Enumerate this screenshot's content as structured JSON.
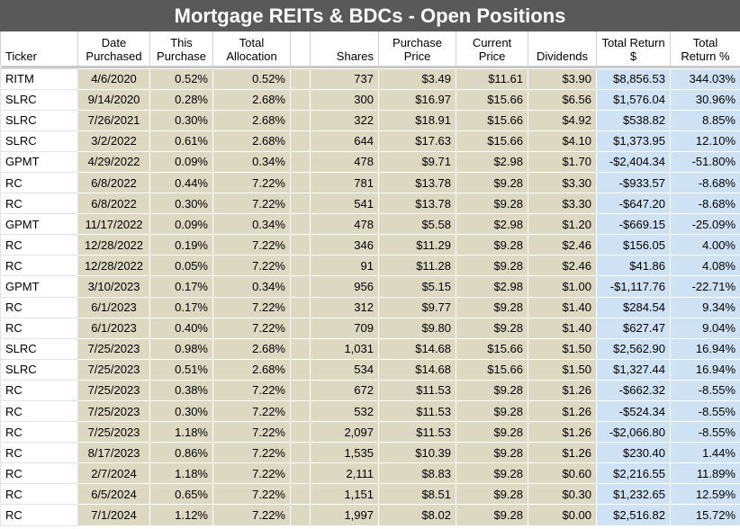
{
  "title": "Mortgage REITs & BDCs - Open Positions",
  "headers": {
    "ticker": "Ticker",
    "date_purchased": "Date Purchased",
    "this_purchase": "This Purchase",
    "total_allocation": "Total Allocation",
    "blank": "",
    "shares": "Shares",
    "purchase_price": "Purchase Price",
    "current_price": "Current Price",
    "dividends": "Dividends",
    "total_return_usd": "Total Return $",
    "total_return_pct": "Total Return %"
  },
  "colors": {
    "title_bg": "#595959",
    "tan": "#dcd8c2",
    "blue": "#cfe2f3",
    "negative": "#cc3333"
  },
  "rows": [
    [
      "RITM",
      "4/6/2020",
      "0.52%",
      "0.52%",
      "737",
      "$3.49",
      "$11.61",
      "$3.90",
      "$8,856.53",
      "344.03%"
    ],
    [
      "SLRC",
      "9/14/2020",
      "0.28%",
      "2.68%",
      "300",
      "$16.97",
      "$15.66",
      "$6.56",
      "$1,576.04",
      "30.96%"
    ],
    [
      "SLRC",
      "7/26/2021",
      "0.30%",
      "2.68%",
      "322",
      "$18.91",
      "$15.66",
      "$4.92",
      "$538.82",
      "8.85%"
    ],
    [
      "SLRC",
      "3/2/2022",
      "0.61%",
      "2.68%",
      "644",
      "$17.63",
      "$15.66",
      "$4.10",
      "$1,373.95",
      "12.10%"
    ],
    [
      "GPMT",
      "4/29/2022",
      "0.09%",
      "0.34%",
      "478",
      "$9.71",
      "$2.98",
      "$1.70",
      "-$2,404.34",
      "-51.80%"
    ],
    [
      "RC",
      "6/8/2022",
      "0.44%",
      "7.22%",
      "781",
      "$13.78",
      "$9.28",
      "$3.30",
      "-$933.57",
      "-8.68%"
    ],
    [
      "RC",
      "6/8/2022",
      "0.30%",
      "7.22%",
      "541",
      "$13.78",
      "$9.28",
      "$3.30",
      "-$647.20",
      "-8.68%"
    ],
    [
      "GPMT",
      "11/17/2022",
      "0.09%",
      "0.34%",
      "478",
      "$5.58",
      "$2.98",
      "$1.20",
      "-$669.15",
      "-25.09%"
    ],
    [
      "RC",
      "12/28/2022",
      "0.19%",
      "7.22%",
      "346",
      "$11.29",
      "$9.28",
      "$2.46",
      "$156.05",
      "4.00%"
    ],
    [
      "RC",
      "12/28/2022",
      "0.05%",
      "7.22%",
      "91",
      "$11.28",
      "$9.28",
      "$2.46",
      "$41.86",
      "4.08%"
    ],
    [
      "GPMT",
      "3/10/2023",
      "0.17%",
      "0.34%",
      "956",
      "$5.15",
      "$2.98",
      "$1.00",
      "-$1,117.76",
      "-22.71%"
    ],
    [
      "RC",
      "6/1/2023",
      "0.17%",
      "7.22%",
      "312",
      "$9.77",
      "$9.28",
      "$1.40",
      "$284.54",
      "9.34%"
    ],
    [
      "RC",
      "6/1/2023",
      "0.40%",
      "7.22%",
      "709",
      "$9.80",
      "$9.28",
      "$1.40",
      "$627.47",
      "9.04%"
    ],
    [
      "SLRC",
      "7/25/2023",
      "0.98%",
      "2.68%",
      "1,031",
      "$14.68",
      "$15.66",
      "$1.50",
      "$2,562.90",
      "16.94%"
    ],
    [
      "SLRC",
      "7/25/2023",
      "0.51%",
      "2.68%",
      "534",
      "$14.68",
      "$15.66",
      "$1.50",
      "$1,327.44",
      "16.94%"
    ],
    [
      "RC",
      "7/25/2023",
      "0.38%",
      "7.22%",
      "672",
      "$11.53",
      "$9.28",
      "$1.26",
      "-$662.32",
      "-8.55%"
    ],
    [
      "RC",
      "7/25/2023",
      "0.30%",
      "7.22%",
      "532",
      "$11.53",
      "$9.28",
      "$1.26",
      "-$524.34",
      "-8.55%"
    ],
    [
      "RC",
      "7/25/2023",
      "1.18%",
      "7.22%",
      "2,097",
      "$11.53",
      "$9.28",
      "$1.26",
      "-$2,066.80",
      "-8.55%"
    ],
    [
      "RC",
      "8/17/2023",
      "0.86%",
      "7.22%",
      "1,535",
      "$10.39",
      "$9.28",
      "$1.26",
      "$230.40",
      "1.44%"
    ],
    [
      "RC",
      "2/7/2024",
      "1.18%",
      "7.22%",
      "2,111",
      "$8.83",
      "$9.28",
      "$0.60",
      "$2,216.55",
      "11.89%"
    ],
    [
      "RC",
      "6/5/2024",
      "0.65%",
      "7.22%",
      "1,151",
      "$8.51",
      "$9.28",
      "$0.30",
      "$1,232.65",
      "12.59%"
    ],
    [
      "RC",
      "7/1/2024",
      "1.12%",
      "7.22%",
      "1,997",
      "$8.02",
      "$9.28",
      "$0.00",
      "$2,516.82",
      "15.72%"
    ]
  ]
}
